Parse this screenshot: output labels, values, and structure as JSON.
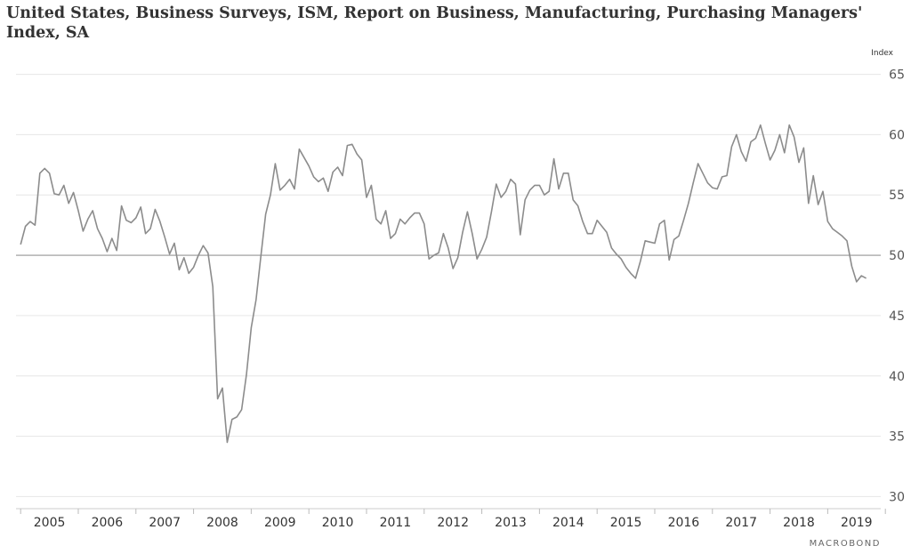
{
  "chart_data": {
    "type": "line",
    "title": "United States, Business Surveys, ISM, Report on Business, Manufacturing, Purchasing Managers' Index, SA",
    "ylabel": "Index",
    "xlabel": "",
    "ylim": [
      29,
      66
    ],
    "yticks": [
      30,
      35,
      40,
      45,
      50,
      55,
      60,
      65
    ],
    "xlim": [
      2004.92,
      2019.92
    ],
    "xticks": [
      "2005",
      "2006",
      "2007",
      "2008",
      "2009",
      "2010",
      "2011",
      "2012",
      "2013",
      "2014",
      "2015",
      "2016",
      "2017",
      "2018",
      "2019"
    ],
    "reference_line": 50,
    "grid": true,
    "legend": "none",
    "line_color": "#8c8c8c",
    "series": [
      {
        "start": "2005-01",
        "frequency": "monthly",
        "values": [
          50.9,
          52.4,
          52.8,
          52.5,
          56.8,
          57.2,
          56.8,
          55.1,
          55.0,
          55.8,
          54.3,
          55.2,
          53.7,
          52.0,
          53.0,
          53.7,
          52.2,
          51.4,
          50.3,
          51.4,
          50.4,
          54.1,
          52.9,
          52.7,
          53.1,
          54.0,
          51.8,
          52.2,
          53.8,
          52.8,
          51.5,
          50.1,
          51.0,
          48.8,
          49.8,
          48.5,
          49.0,
          50.0,
          50.8,
          50.2,
          47.4,
          38.1,
          39.0,
          34.5,
          36.4,
          36.6,
          37.2,
          40.1,
          44.0,
          46.3,
          49.9,
          53.4,
          55.0,
          57.6,
          55.4,
          55.8,
          56.3,
          55.5,
          58.8,
          58.1,
          57.4,
          56.5,
          56.1,
          56.4,
          55.3,
          56.9,
          57.3,
          56.6,
          59.1,
          59.2,
          58.4,
          57.9,
          54.8,
          55.8,
          53.0,
          52.6,
          53.7,
          51.4,
          51.8,
          53.0,
          52.6,
          53.1,
          53.5,
          53.5,
          52.6,
          49.7,
          50.0,
          50.2,
          51.8,
          50.6,
          48.9,
          49.8,
          51.9,
          53.6,
          51.8,
          49.7,
          50.5,
          51.5,
          53.6,
          55.9,
          54.8,
          55.3,
          56.3,
          55.9,
          51.7,
          54.6,
          55.4,
          55.8,
          55.8,
          55.0,
          55.3,
          58.0,
          55.5,
          56.8,
          56.8,
          54.6,
          54.1,
          52.8,
          51.8,
          51.8,
          52.9,
          52.4,
          51.9,
          50.6,
          50.1,
          49.7,
          49.0,
          48.5,
          48.1,
          49.5,
          51.2,
          51.1,
          51.0,
          52.6,
          52.9,
          49.6,
          51.3,
          51.6,
          52.9,
          54.3,
          56.0,
          57.6,
          56.8,
          56.0,
          55.6,
          55.5,
          56.5,
          56.6,
          59.0,
          60.0,
          58.6,
          57.8,
          59.4,
          59.7,
          60.8,
          59.3,
          57.9,
          58.7,
          60.0,
          58.5,
          60.8,
          59.8,
          57.7,
          58.9,
          54.3,
          56.6,
          54.2,
          55.3,
          52.8,
          52.2,
          51.9,
          51.6,
          51.2,
          49.1,
          47.8,
          48.3,
          48.1
        ]
      }
    ]
  },
  "brand": "MACROBOND"
}
